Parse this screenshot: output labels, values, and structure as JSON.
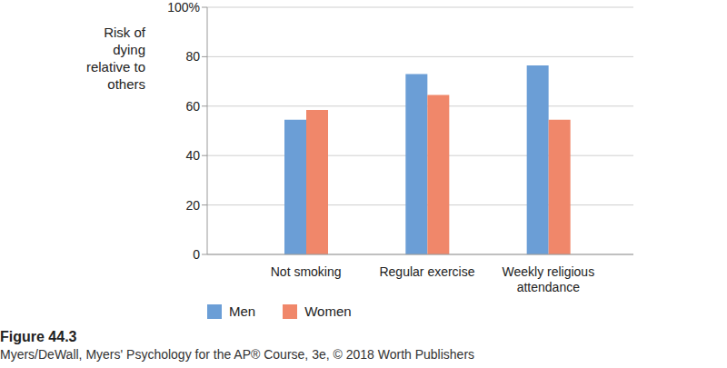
{
  "chart_data": {
    "type": "bar",
    "caption": "Figure 44.3",
    "source": "Myers/DeWall, Myers' Psychology for the AP® Course, 3e, © 2018 Worth Publishers",
    "y_label": "Risk of dying relative to others",
    "categories": [
      "Not smoking",
      "Regular exercise",
      "Weekly religious attendance"
    ],
    "series": [
      {
        "name": "Men",
        "color": "#6b9ed6",
        "values": [
          54.5,
          73,
          76.5
        ]
      },
      {
        "name": "Women",
        "color": "#f0876a",
        "values": [
          58.5,
          64.5,
          54.5
        ]
      }
    ],
    "ylim": [
      0,
      100
    ],
    "yticks": [
      0,
      20,
      40,
      60,
      80,
      {
        "value": 100,
        "label": "100%"
      }
    ],
    "grid": true,
    "legend": "bottom"
  }
}
